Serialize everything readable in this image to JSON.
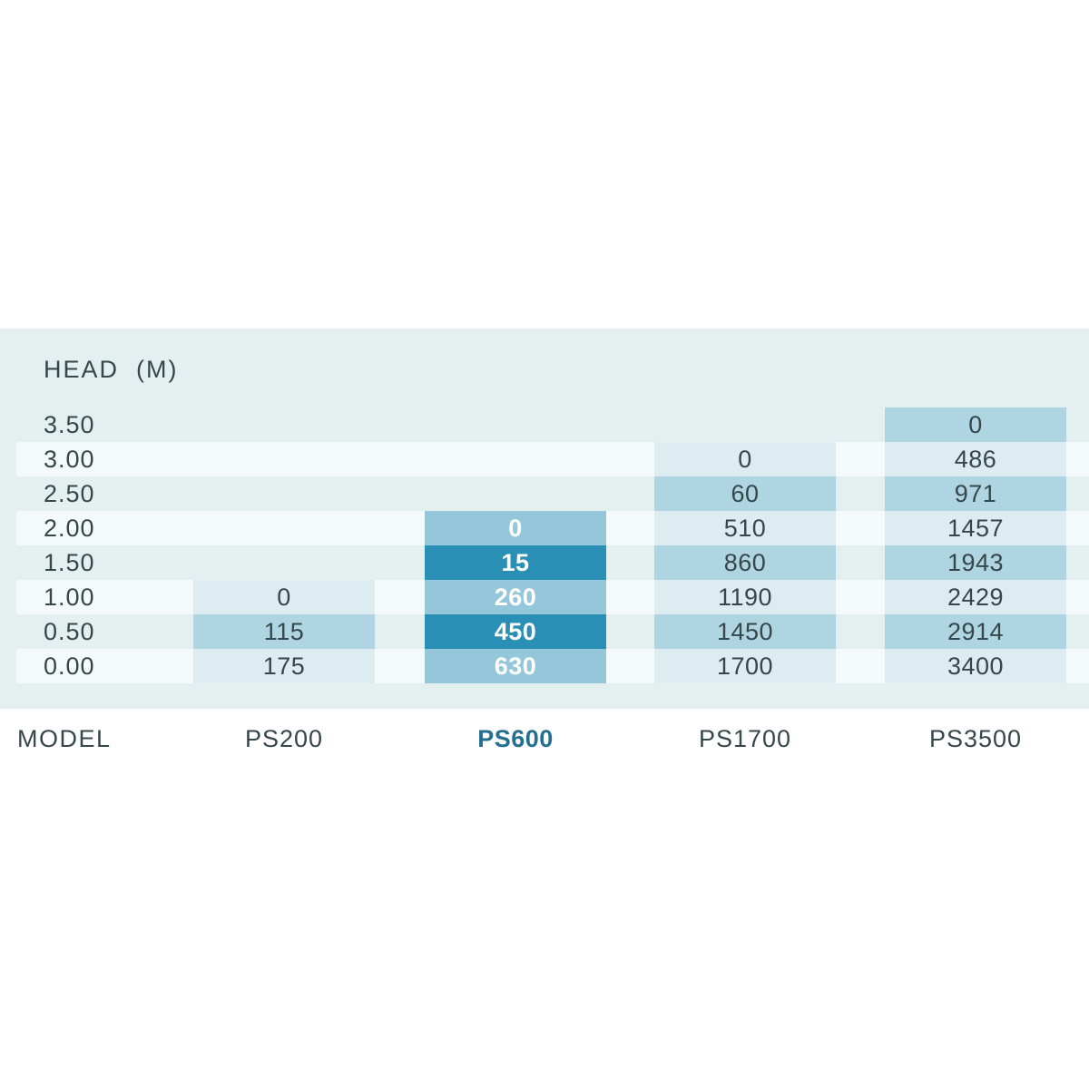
{
  "colors": {
    "panel_bg": "#e4efef",
    "stripe": "#f4fafa",
    "cell_light": "#dcecf1",
    "cell_medium": "#afd5e2",
    "cell_highlight_medium": "#94c7d9",
    "cell_highlight_dark": "#2a8fb5",
    "text_dark": "#36474c",
    "text_white": "#ffffff",
    "highlight_label": "#26708f"
  },
  "chart_data": {
    "type": "table",
    "row_axis_label": "HEAD  (M)",
    "col_axis_label": "MODEL",
    "models": [
      "PS200",
      "PS600",
      "PS1700",
      "PS3500"
    ],
    "highlighted_model": "PS600",
    "heads": [
      "3.50",
      "3.00",
      "2.50",
      "2.00",
      "1.50",
      "1.00",
      "0.50",
      "0.00"
    ],
    "rows": [
      {
        "head": "3.50",
        "values": [
          null,
          null,
          null,
          "0"
        ]
      },
      {
        "head": "3.00",
        "values": [
          null,
          null,
          "0",
          "486"
        ]
      },
      {
        "head": "2.50",
        "values": [
          null,
          null,
          "60",
          "971"
        ]
      },
      {
        "head": "2.00",
        "values": [
          null,
          "0",
          "510",
          "1457"
        ]
      },
      {
        "head": "1.50",
        "values": [
          null,
          "15",
          "860",
          "1943"
        ]
      },
      {
        "head": "1.00",
        "values": [
          "0",
          "260",
          "1190",
          "2429"
        ]
      },
      {
        "head": "0.50",
        "values": [
          "115",
          "450",
          "1450",
          "2914"
        ]
      },
      {
        "head": "0.00",
        "values": [
          "175",
          "630",
          "1700",
          "3400"
        ]
      }
    ]
  }
}
